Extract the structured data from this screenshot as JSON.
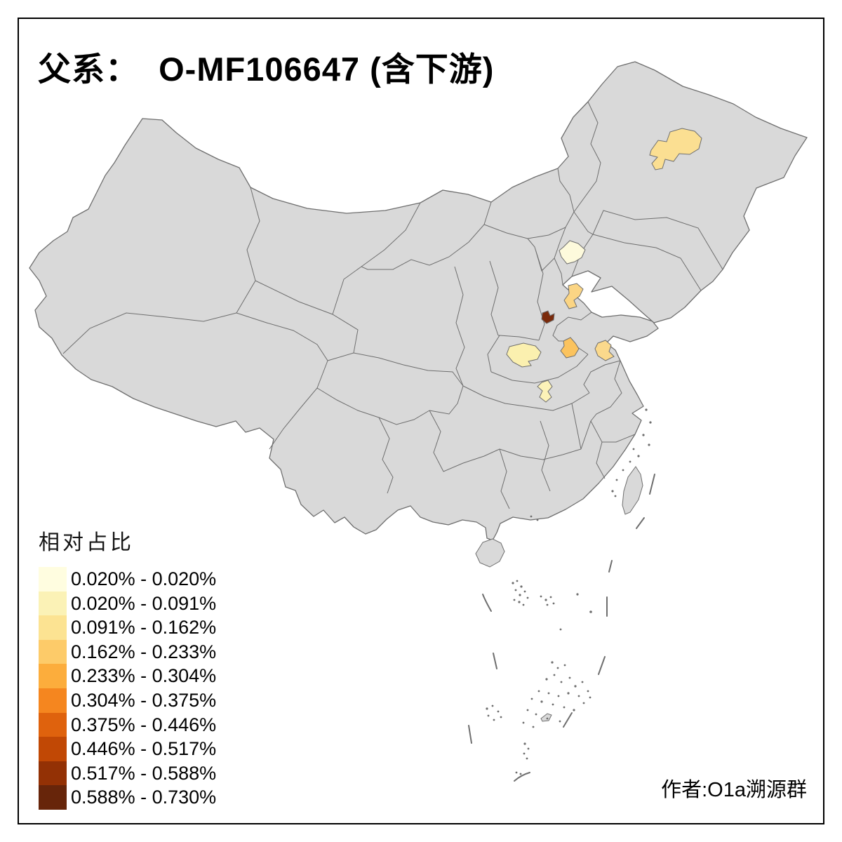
{
  "title": "父系：  O-MF106647 (含下游)",
  "caption": "作者:O1a溯源群",
  "legend": {
    "title": "相对占比",
    "entries": [
      {
        "label": "0.020% - 0.020%",
        "color": "#FFFDE0"
      },
      {
        "label": "0.020% - 0.091%",
        "color": "#FBF2B6"
      },
      {
        "label": "0.091% - 0.162%",
        "color": "#FCE392"
      },
      {
        "label": "0.162% - 0.233%",
        "color": "#FDCB69"
      },
      {
        "label": "0.233% - 0.304%",
        "color": "#FCAD3C"
      },
      {
        "label": "0.304% - 0.375%",
        "color": "#F5861F"
      },
      {
        "label": "0.375% - 0.446%",
        "color": "#DF620D"
      },
      {
        "label": "0.446% - 0.517%",
        "color": "#C14805"
      },
      {
        "label": "0.517% - 0.588%",
        "color": "#933105"
      },
      {
        "label": "0.588% - 0.730%",
        "color": "#67250A"
      }
    ]
  },
  "map": {
    "base_fill": "#D9D9D9",
    "border_color": "#6E6E6E",
    "sea_color": "#FFFFFF",
    "frame_color": "#000000",
    "highlighted_regions": [
      {
        "name": "heilongjiang-west",
        "color": "#FBDF92"
      },
      {
        "name": "beijing",
        "color": "#FDFADC"
      },
      {
        "name": "shandong-northwest",
        "color": "#FBD584"
      },
      {
        "name": "hebei-south-dark",
        "color": "#7A2A0B"
      },
      {
        "name": "henan-west",
        "color": "#FBF0AF"
      },
      {
        "name": "shandong-southwest",
        "color": "#FBC35E"
      },
      {
        "name": "jiangsu-north",
        "color": "#FBD98C"
      },
      {
        "name": "hubei-north",
        "color": "#FCF2B8"
      }
    ]
  }
}
